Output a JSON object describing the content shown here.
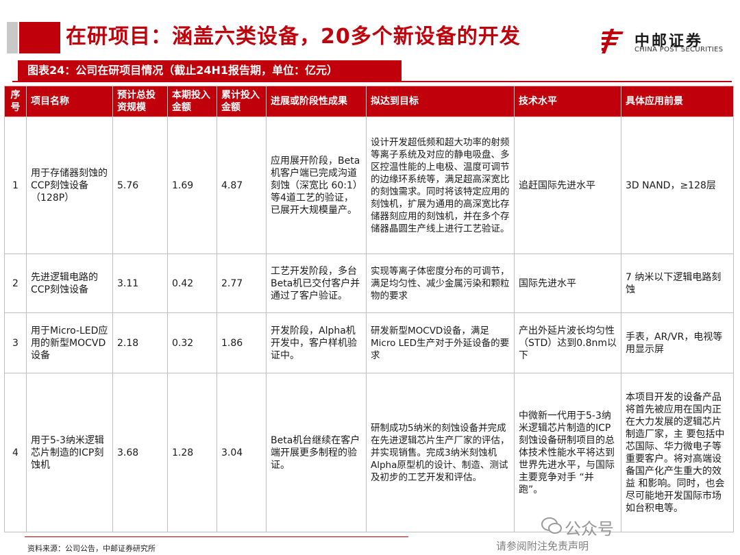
{
  "page": {
    "title": "在研项目：涵盖六类设备，20多个新设备的开发",
    "caption": "图表24：公司在研项目情况（截止24H1报告期，单位：亿元）"
  },
  "logo": {
    "cn": "中邮证券",
    "en": "CHINA POST SECURITIES"
  },
  "colors": {
    "accent": "#c0000b",
    "grey_bar": "#c8c8c8"
  },
  "table": {
    "headers": [
      "序号",
      "项目名称",
      "预计总投资规模",
      "本期投入金额",
      "累计投入金额",
      "进展或阶段性成果",
      "拟达到目标",
      "技术水平",
      "具体应用前景"
    ],
    "rows": [
      [
        "1",
        "用于存储器刻蚀的CCP刻蚀设备（128P）",
        "5.76",
        "1.69",
        "4.87",
        "应用展开阶段，Beta机客户端已完成沟道刻蚀（深宽比 60:1）等4道工艺的验证，已展开大规模量产。",
        "设计开发超低频和超大功率的射频等离子系统及对应的静电吸盘、多区控温性能的上电极、温度可调节的边缘环系统等，满足超高深宽比的刻蚀需求。同时将该特定应用的刻蚀机，扩展为通用的高深宽比存储器刻应用的刻蚀机，并在多个存储器晶圆生产线上进行工艺验证。",
        "追赶国际先进水平",
        "3D NAND，≥128层"
      ],
      [
        "2",
        "先进逻辑电路的CCP刻蚀设备",
        "3.11",
        "0.42",
        "2.77",
        "工艺开发阶段，多台Beta机已交付客户并通过了客户验证。",
        "实现等离子体密度分布的可调节，满足均匀性、减少金属污染和颗粒物的要求",
        "国际先进水平",
        "7 纳米以下逻辑电路刻蚀"
      ],
      [
        "3",
        "用于Micro-LED应用的新型MOCVD设备",
        "2.18",
        "0.32",
        "1.86",
        "开发阶段，Alpha机开发中，客户样机验证中。",
        "研发新型MOCVD设备，满足Micro LED生产对于外延设备的要求",
        "产出外延片波长均匀性 （STD）达到0.8nm以下",
        "手表，AR/VR，电视等用显示屏"
      ],
      [
        "4",
        "用于5-3纳米逻辑芯片制造的ICP刻蚀机",
        "3.68",
        "1.28",
        "3.04",
        "Beta机台继续在客户端开展更多制程的验证。",
        "研制成功5纳米的刻蚀设备并完成在先进逻辑芯片生产厂家的评估，并实现销售。完成3纳米刻蚀机Alpha原型机的设计、制造、测试及初步的工艺开发和评估。",
        "中微新一代用于5-3纳米逻辑芯片制造的ICP刻蚀设备研制项目的总体技术性能水平将达到世界先进水平，与国际主要竞争对手 “并跑”。",
        "本项目开发的设备产品将首先被应用在国内正在大力发展的逻辑芯片制造厂家，主 要包括中芯国际、华力微电子等重要客户。将对高端设备国产化产生重大的效益 和影响。同时，也会尽可能地开发国际市场如台积电等。"
      ]
    ]
  },
  "footer": {
    "source": "资料来源：公司公告，中邮证券研究所",
    "disclaimer": "请参阅附注免责声明",
    "watermark": "公众号"
  }
}
